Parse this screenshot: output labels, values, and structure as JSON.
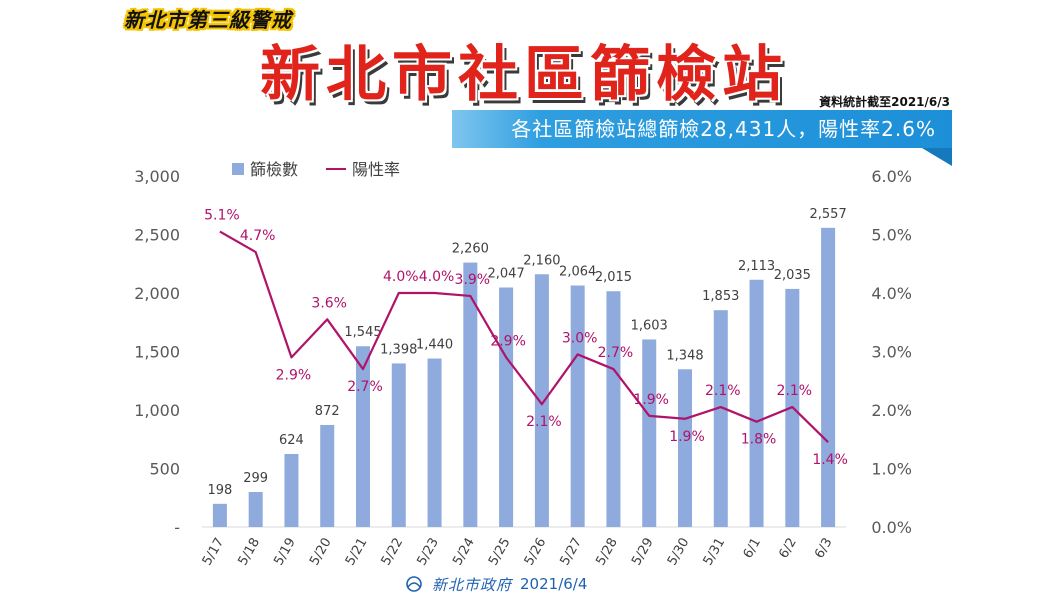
{
  "header": {
    "badge": "新北市第三級警戒",
    "title": "新北市社區篩檢站",
    "stat_date": "資料統計截至2021/6/3",
    "summary": "各社區篩檢站總篩檢28,431人，陽性率2.6%"
  },
  "footer": {
    "org": "新北市政府",
    "date": "2021/6/4"
  },
  "colors": {
    "bar": "#8faadc",
    "line": "#b0136a",
    "title": "#e0231b",
    "banner": "#1c8fd8"
  },
  "chart_data": {
    "type": "bar",
    "categories": [
      "5/17",
      "5/18",
      "5/19",
      "5/20",
      "5/21",
      "5/22",
      "5/23",
      "5/24",
      "5/25",
      "5/26",
      "5/27",
      "5/28",
      "5/29",
      "5/30",
      "5/31",
      "6/1",
      "6/2",
      "6/3"
    ],
    "series": [
      {
        "name": "篩檢數",
        "type": "bar",
        "axis": "left",
        "values": [
          198,
          299,
          624,
          872,
          1545,
          1398,
          1440,
          2260,
          2047,
          2160,
          2064,
          2015,
          1603,
          1348,
          1853,
          2113,
          2035,
          2557
        ],
        "labels": [
          "198",
          "299",
          "624",
          "872",
          "1,545",
          "1,398",
          "1,440",
          "2,260",
          "2,047",
          "2,160",
          "2,064",
          "2,015",
          "1,603",
          "1,348",
          "1,853",
          "2,113",
          "2,035",
          "2,557"
        ]
      },
      {
        "name": "陽性率",
        "type": "line",
        "axis": "right",
        "values": [
          5.05,
          4.7,
          2.9,
          3.55,
          2.7,
          4.0,
          4.0,
          3.95,
          2.9,
          2.1,
          2.95,
          2.7,
          1.9,
          1.85,
          2.05,
          1.8,
          2.05,
          1.45
        ],
        "labels": [
          "5.1%",
          "4.7%",
          "2.9%",
          "3.6%",
          "2.7%",
          "4.0%",
          "4.0%",
          "3.9%",
          "2.9%",
          "2.1%",
          "3.0%",
          "2.7%",
          "1.9%",
          "1.9%",
          "2.1%",
          "1.8%",
          "2.1%",
          "1.4%"
        ]
      }
    ],
    "left_axis": {
      "ylim": [
        0,
        3000
      ],
      "ticks": [
        0,
        500,
        1000,
        1500,
        2000,
        2500,
        3000
      ],
      "tick_labels": [
        "-",
        "500",
        "1,000",
        "1,500",
        "2,000",
        "2,500",
        "3,000"
      ]
    },
    "right_axis": {
      "ylim": [
        0,
        6
      ],
      "ticks": [
        0,
        1,
        2,
        3,
        4,
        5,
        6
      ],
      "tick_labels": [
        "0.0%",
        "1.0%",
        "2.0%",
        "3.0%",
        "4.0%",
        "5.0%",
        "6.0%"
      ]
    },
    "legend": {
      "position": "top-left",
      "entries": [
        "篩檢數",
        "陽性率"
      ]
    },
    "grid": false
  }
}
